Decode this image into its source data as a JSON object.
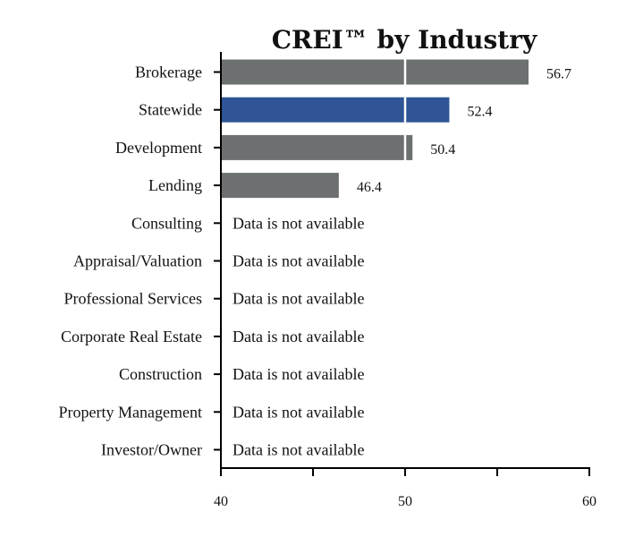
{
  "chart_data": {
    "type": "bar",
    "orientation": "horizontal",
    "title": "CREI™ by Industry",
    "xlabel": "",
    "ylabel": "",
    "xlim": [
      40,
      60
    ],
    "xticks": [
      40,
      45,
      50,
      55,
      60
    ],
    "xtick_labels": [
      "40",
      "",
      "50",
      "",
      "60"
    ],
    "reference_line": 50,
    "categories": [
      "Brokerage",
      "Statewide",
      "Development",
      "Lending",
      "Consulting",
      "Appraisal/Valuation",
      "Professional Services",
      "Corporate Real Estate",
      "Construction",
      "Property Management",
      "Investor/Owner"
    ],
    "values": [
      56.7,
      52.4,
      50.4,
      46.4,
      null,
      null,
      null,
      null,
      null,
      null,
      null
    ],
    "value_labels": [
      "56.7",
      "52.4",
      "50.4",
      "46.4",
      "Data is not available",
      "Data is not available",
      "Data is not available",
      "Data is not available",
      "Data is not available",
      "Data is not available",
      "Data is not available"
    ],
    "highlight_category": "Statewide",
    "colors": {
      "default": "#6d7070",
      "highlight": "#2f5596",
      "reference_line": "#ffffff"
    },
    "grid": false
  }
}
